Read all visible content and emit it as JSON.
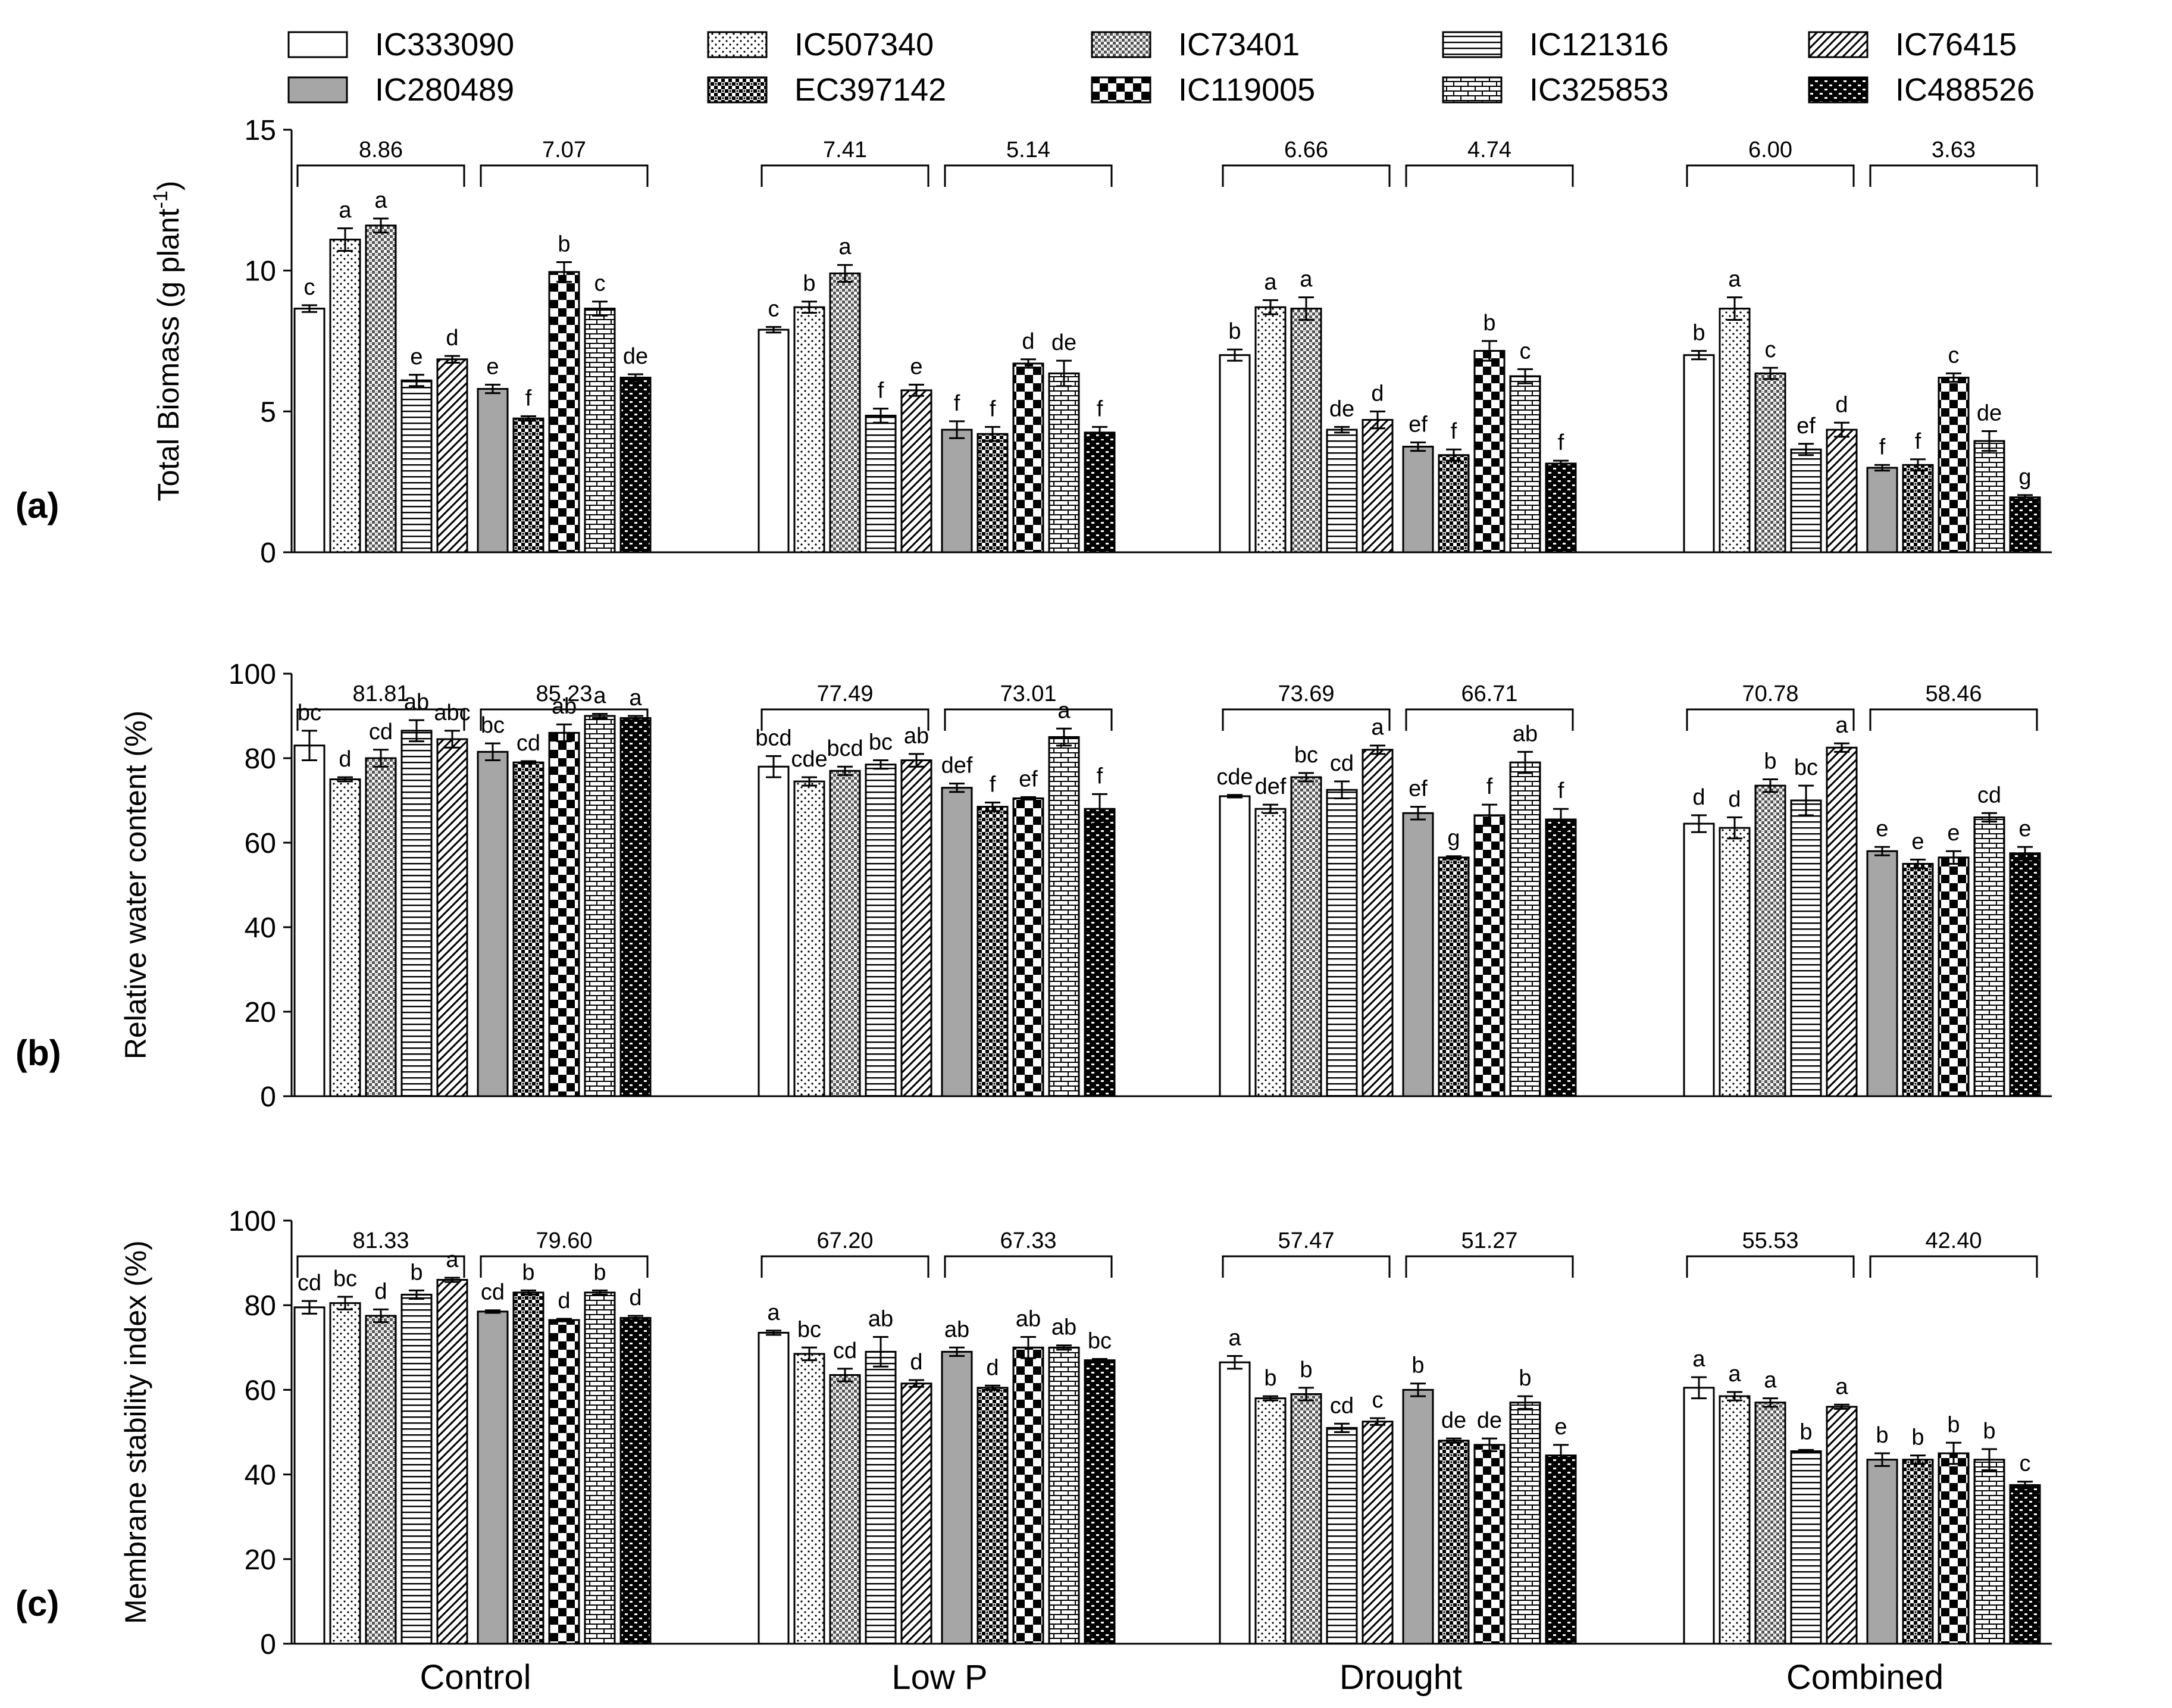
{
  "colors": {
    "ink": "#000000",
    "grey_fill": "#a6a6a6",
    "background": "#ffffff"
  },
  "legend": [
    {
      "name": "IC333090",
      "pattern": "white"
    },
    {
      "name": "IC280489",
      "pattern": "grey"
    },
    {
      "name": "IC507340",
      "pattern": "dots"
    },
    {
      "name": "EC397142",
      "pattern": "dense-check"
    },
    {
      "name": "IC73401",
      "pattern": "light-check"
    },
    {
      "name": "IC119005",
      "pattern": "big-check"
    },
    {
      "name": "IC121316",
      "pattern": "hlines"
    },
    {
      "name": "IC325853",
      "pattern": "brick"
    },
    {
      "name": "IC76415",
      "pattern": "diag"
    },
    {
      "name": "IC488526",
      "pattern": "dark-brick"
    }
  ],
  "chart_data": [
    {
      "panel_label": "(a)",
      "type": "bar",
      "ylabel": "Total Biomass (g plant",
      "ylabel_sup": "-1",
      "ylabel_close": ")",
      "ylim": [
        0,
        15
      ],
      "yticks": [
        0,
        5,
        10,
        15
      ],
      "group_names": [
        "Control",
        "Low P",
        "Drought",
        "Combined"
      ],
      "subgroups": [
        {
          "varieties": [
            "IC333090",
            "IC507340",
            "IC73401",
            "IC121316",
            "IC76415"
          ],
          "mean_label": "8.86",
          "values": [
            8.65,
            11.1,
            11.6,
            6.1,
            6.85
          ],
          "errors": [
            0.12,
            0.4,
            0.25,
            0.2,
            0.12
          ],
          "letters": [
            "c",
            "a",
            "a",
            "e",
            "d"
          ]
        },
        {
          "varieties": [
            "IC280489",
            "EC397142",
            "IC119005",
            "IC325853",
            "IC488526"
          ],
          "mean_label": "7.07",
          "values": [
            5.8,
            4.75,
            9.95,
            8.65,
            6.2
          ],
          "errors": [
            0.15,
            0.08,
            0.35,
            0.25,
            0.12
          ],
          "letters": [
            "e",
            "f",
            "b",
            "c",
            "de"
          ]
        },
        {
          "varieties": [
            "IC333090",
            "IC507340",
            "IC73401",
            "IC121316",
            "IC76415"
          ],
          "mean_label": "7.41",
          "values": [
            7.9,
            8.7,
            9.9,
            4.85,
            5.75
          ],
          "errors": [
            0.1,
            0.2,
            0.3,
            0.25,
            0.2
          ],
          "letters": [
            "c",
            "b",
            "a",
            "f",
            "e"
          ]
        },
        {
          "varieties": [
            "IC280489",
            "EC397142",
            "IC119005",
            "IC325853",
            "IC488526"
          ],
          "mean_label": "5.14",
          "values": [
            4.35,
            4.2,
            6.7,
            6.35,
            4.25
          ],
          "errors": [
            0.3,
            0.25,
            0.15,
            0.45,
            0.2
          ],
          "letters": [
            "f",
            "f",
            "d",
            "de",
            "f"
          ]
        },
        {
          "varieties": [
            "IC333090",
            "IC507340",
            "IC73401",
            "IC121316",
            "IC76415"
          ],
          "mean_label": "6.66",
          "values": [
            7.0,
            8.7,
            8.65,
            4.35,
            4.7
          ],
          "errors": [
            0.2,
            0.25,
            0.4,
            0.1,
            0.3
          ],
          "letters": [
            "b",
            "a",
            "a",
            "de",
            "d"
          ]
        },
        {
          "varieties": [
            "IC280489",
            "EC397142",
            "IC119005",
            "IC325853",
            "IC488526"
          ],
          "mean_label": "4.74",
          "values": [
            3.75,
            3.45,
            7.15,
            6.25,
            3.15
          ],
          "errors": [
            0.15,
            0.2,
            0.35,
            0.25,
            0.1
          ],
          "letters": [
            "ef",
            "f",
            "b",
            "c",
            "f"
          ]
        },
        {
          "varieties": [
            "IC333090",
            "IC507340",
            "IC73401",
            "IC121316",
            "IC76415"
          ],
          "mean_label": "6.00",
          "values": [
            7.0,
            8.65,
            6.35,
            3.65,
            4.35
          ],
          "errors": [
            0.15,
            0.4,
            0.2,
            0.2,
            0.25
          ],
          "letters": [
            "b",
            "a",
            "c",
            "ef",
            "d"
          ]
        },
        {
          "varieties": [
            "IC280489",
            "EC397142",
            "IC119005",
            "IC325853",
            "IC488526"
          ],
          "mean_label": "3.63",
          "values": [
            3.0,
            3.1,
            6.2,
            3.95,
            1.95
          ],
          "errors": [
            0.1,
            0.2,
            0.15,
            0.35,
            0.08
          ],
          "letters": [
            "f",
            "f",
            "c",
            "de",
            "g"
          ]
        }
      ]
    },
    {
      "panel_label": "(b)",
      "type": "bar",
      "ylabel": "Relative water content (%)",
      "ylabel_sup": "",
      "ylabel_close": "",
      "ylim": [
        0,
        100
      ],
      "yticks": [
        0,
        20,
        40,
        60,
        80,
        100
      ],
      "group_names": [
        "Control",
        "Low P",
        "Drought",
        "Combined"
      ],
      "subgroups": [
        {
          "varieties": [
            "IC333090",
            "IC507340",
            "IC73401",
            "IC121316",
            "IC76415"
          ],
          "mean_label": "81.81",
          "values": [
            83,
            75,
            80,
            86.5,
            84.5
          ],
          "errors": [
            3.5,
            0.5,
            2,
            2.5,
            2
          ],
          "letters": [
            "bc",
            "d",
            "cd",
            "ab",
            "abc"
          ]
        },
        {
          "varieties": [
            "IC280489",
            "EC397142",
            "IC119005",
            "IC325853",
            "IC488526"
          ],
          "mean_label": "85.23",
          "values": [
            81.5,
            79,
            86,
            90,
            89.5
          ],
          "errors": [
            2,
            0.3,
            2,
            0.5,
            0.5
          ],
          "letters": [
            "bc",
            "cd",
            "ab",
            "a",
            "a"
          ]
        },
        {
          "varieties": [
            "IC333090",
            "IC507340",
            "IC73401",
            "IC121316",
            "IC76415"
          ],
          "mean_label": "77.49",
          "values": [
            78,
            74.5,
            77,
            78.5,
            79.5
          ],
          "errors": [
            2.5,
            1,
            1,
            1,
            1.5
          ],
          "letters": [
            "bcd",
            "cde",
            "bcd",
            "bc",
            "ab"
          ]
        },
        {
          "varieties": [
            "IC280489",
            "EC397142",
            "IC119005",
            "IC325853",
            "IC488526"
          ],
          "mean_label": "73.01",
          "values": [
            73,
            68.5,
            70.5,
            85,
            68
          ],
          "errors": [
            1,
            1,
            0.3,
            2,
            3.5
          ],
          "letters": [
            "def",
            "f",
            "ef",
            "a",
            "f"
          ]
        },
        {
          "varieties": [
            "IC333090",
            "IC507340",
            "IC73401",
            "IC121316",
            "IC76415"
          ],
          "mean_label": "73.69",
          "values": [
            71,
            68,
            75.5,
            72.5,
            82
          ],
          "errors": [
            0.3,
            1,
            1,
            2,
            1
          ],
          "letters": [
            "cde",
            "def",
            "bc",
            "cd",
            "a"
          ]
        },
        {
          "varieties": [
            "IC280489",
            "EC397142",
            "IC119005",
            "IC325853",
            "IC488526"
          ],
          "mean_label": "66.71",
          "values": [
            67,
            56.5,
            66.5,
            79,
            65.5
          ],
          "errors": [
            1.5,
            0.3,
            2.5,
            2.5,
            2.5
          ],
          "letters": [
            "ef",
            "g",
            "f",
            "ab",
            "f"
          ]
        },
        {
          "varieties": [
            "IC333090",
            "IC507340",
            "IC73401",
            "IC121316",
            "IC76415"
          ],
          "mean_label": "70.78",
          "values": [
            64.5,
            63.5,
            73.5,
            70,
            82.5
          ],
          "errors": [
            2,
            2.5,
            1.5,
            3.5,
            1
          ],
          "letters": [
            "d",
            "d",
            "b",
            "bc",
            "a"
          ]
        },
        {
          "varieties": [
            "IC280489",
            "EC397142",
            "IC119005",
            "IC325853",
            "IC488526"
          ],
          "mean_label": "58.46",
          "values": [
            58,
            55,
            56.5,
            66,
            57.5
          ],
          "errors": [
            1,
            1,
            1.5,
            1,
            1.5
          ],
          "letters": [
            "e",
            "e",
            "e",
            "cd",
            "e"
          ]
        }
      ]
    },
    {
      "panel_label": "(c)",
      "type": "bar",
      "ylabel": "Membrane stability index (%)",
      "ylabel_sup": "",
      "ylabel_close": "",
      "ylim": [
        0,
        100
      ],
      "yticks": [
        0,
        20,
        40,
        60,
        80,
        100
      ],
      "group_names": [
        "Control",
        "Low P",
        "Drought",
        "Combined"
      ],
      "subgroups": [
        {
          "varieties": [
            "IC333090",
            "IC507340",
            "IC73401",
            "IC121316",
            "IC76415"
          ],
          "mean_label": "81.33",
          "values": [
            79.5,
            80.5,
            77.5,
            82.5,
            86
          ],
          "errors": [
            1.5,
            1.5,
            1.5,
            1,
            0.5
          ],
          "letters": [
            "cd",
            "bc",
            "d",
            "b",
            "a"
          ]
        },
        {
          "varieties": [
            "IC280489",
            "EC397142",
            "IC119005",
            "IC325853",
            "IC488526"
          ],
          "mean_label": "79.60",
          "values": [
            78.5,
            83,
            76.5,
            83,
            77
          ],
          "errors": [
            0.3,
            0.5,
            0.3,
            0.5,
            0.5
          ],
          "letters": [
            "cd",
            "b",
            "d",
            "b",
            "d"
          ]
        },
        {
          "varieties": [
            "IC333090",
            "IC507340",
            "IC73401",
            "IC121316",
            "IC76415"
          ],
          "mean_label": "67.20",
          "values": [
            73.5,
            68.5,
            63.5,
            69,
            61.5
          ],
          "errors": [
            0.5,
            1.5,
            1.5,
            3.5,
            0.8
          ],
          "letters": [
            "a",
            "bc",
            "cd",
            "ab",
            "d"
          ]
        },
        {
          "varieties": [
            "IC280489",
            "EC397142",
            "IC119005",
            "IC325853",
            "IC488526"
          ],
          "mean_label": "67.33",
          "values": [
            69,
            60.5,
            70,
            70,
            67
          ],
          "errors": [
            1,
            0.5,
            2.5,
            0.5,
            0.3
          ],
          "letters": [
            "ab",
            "d",
            "ab",
            "ab",
            "bc"
          ]
        },
        {
          "varieties": [
            "IC333090",
            "IC507340",
            "IC73401",
            "IC121316",
            "IC76415"
          ],
          "mean_label": "57.47",
          "values": [
            66.5,
            58,
            59,
            51,
            52.5
          ],
          "errors": [
            1.5,
            0.5,
            1.5,
            1,
            0.8
          ],
          "letters": [
            "a",
            "b",
            "b",
            "cd",
            "c"
          ]
        },
        {
          "varieties": [
            "IC280489",
            "EC397142",
            "IC119005",
            "IC325853",
            "IC488526"
          ],
          "mean_label": "51.27",
          "values": [
            60,
            48,
            47,
            57,
            44.5
          ],
          "errors": [
            1.5,
            0.5,
            1.5,
            1.5,
            2.5
          ],
          "letters": [
            "b",
            "de",
            "de",
            "b",
            "e"
          ]
        },
        {
          "varieties": [
            "IC333090",
            "IC507340",
            "IC73401",
            "IC121316",
            "IC76415"
          ],
          "mean_label": "55.53",
          "values": [
            60.5,
            58.5,
            57,
            45.5,
            56
          ],
          "errors": [
            2.5,
            1,
            1,
            0.3,
            0.5
          ],
          "letters": [
            "a",
            "a",
            "a",
            "b",
            "a"
          ]
        },
        {
          "varieties": [
            "IC280489",
            "EC397142",
            "IC119005",
            "IC325853",
            "IC488526"
          ],
          "mean_label": "42.40",
          "values": [
            43.5,
            43.5,
            45,
            43.5,
            37.5
          ],
          "errors": [
            1.5,
            1,
            2.5,
            2.5,
            0.8
          ],
          "letters": [
            "b",
            "b",
            "b",
            "b",
            "c"
          ]
        }
      ]
    }
  ]
}
